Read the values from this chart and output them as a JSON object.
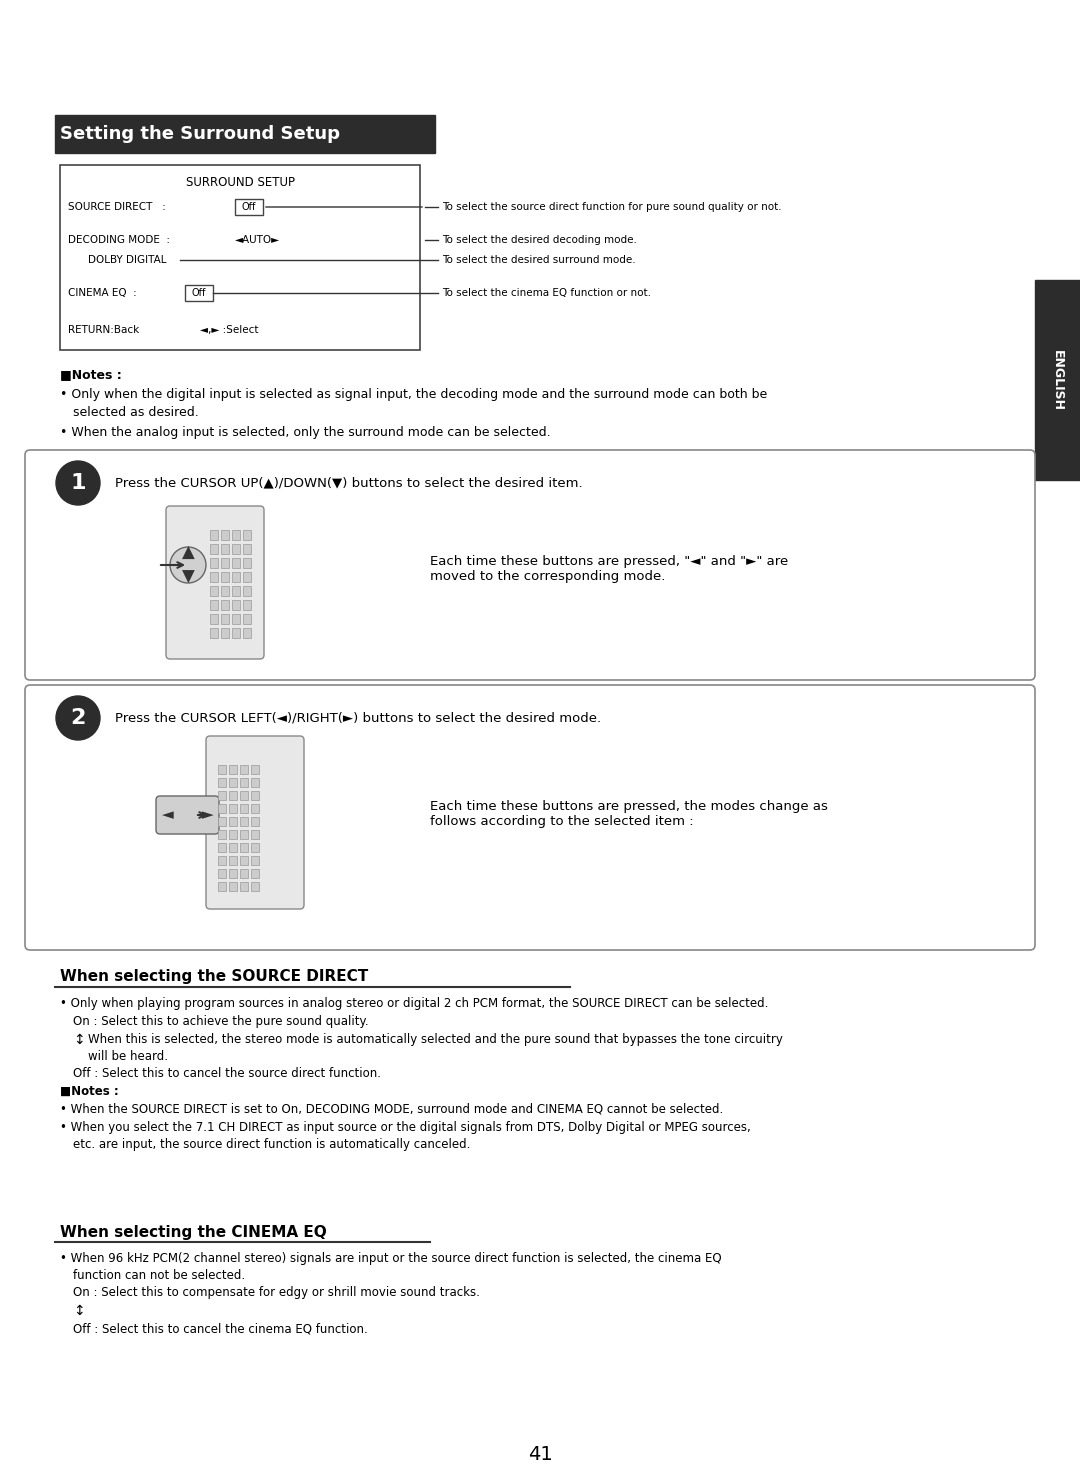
{
  "page_number": "41",
  "bg_color": "#ffffff",
  "title_bar_text": "Setting the Surround Setup",
  "title_bar_bg": "#2c2c2c",
  "title_bar_text_color": "#ffffff",
  "english_tab_text": "ENGLISH",
  "english_tab_bg": "#2c2c2c",
  "english_tab_text_color": "#ffffff",
  "surround_setup_box": {
    "title": "SURROUND SETUP",
    "rows": [
      {
        "label": "SOURCE DIRECT  :",
        "value": "Off",
        "arrow_text": "To select the source direct function for pure sound quality or not."
      },
      {
        "label": "DECODING MODE  : ◄AUTO►",
        "value": "",
        "arrow_text": "To select the desired decoding mode."
      },
      {
        "label": "  DOLBY DIGITAL",
        "value": "",
        "arrow_text": "To select the desired surround mode."
      },
      {
        "label": "CINEMA EQ :",
        "value": "Off",
        "arrow_text": "To select the cinema EQ function or not."
      },
      {
        "label": "RETURN:Back",
        "value": "◄,► :Select",
        "arrow_text": ""
      }
    ]
  },
  "notes_section": {
    "header": "■Notes :",
    "bullets": [
      "Only when the digital input is selected as signal input, the decoding mode and the surround mode can both be\n    selected as desired.",
      "When the analog input is selected, only the surround mode can be selected."
    ]
  },
  "step1": {
    "number": "1",
    "instruction": "Press the CURSOR UP(▲)/DOWN(▼) buttons to select the desired item.",
    "bullet": "Each time these buttons are pressed, \"◄\" and \"►\" are\nmoved to the corresponding mode."
  },
  "step2": {
    "number": "2",
    "instruction": "Press the CURSOR LEFT(◄)/RIGHT(►) buttons to select the desired mode.",
    "bullet": "Each time these buttons are pressed, the modes change as\nfollows according to the selected item :"
  },
  "source_direct_section": {
    "title": "When selecting the SOURCE DIRECT",
    "content": [
      "• Only when playing program sources in analog stereo or digital 2 ch PCM format, the SOURCE DIRECT can be selected.",
      "  On : Select this to achieve the pure sound quality.",
      "  ↕  When this is selected, the stereo mode is automatically selected and the pure sound that bypasses the tone circuitry\n      will be heard.",
      "  Off : Select this to cancel the source direct function.",
      "■Notes :",
      "• When the SOURCE DIRECT is set to On, DECODING MODE, surround mode and CINEMA EQ cannot be selected.",
      "• When you select the 7.1 CH DIRECT as input source or the digital signals from DTS, Dolby Digital or MPEG sources,\n  etc. are input, the source direct function is automatically canceled."
    ]
  },
  "cinema_eq_section": {
    "title": "When selecting the CINEMA EQ",
    "content": [
      "• When 96 kHz PCM(2 channel stereo) signals are input or the source direct function is selected, the cinema EQ\n  function can not be selected.",
      "  On : Select this to compensate for edgy or shrill movie sound tracks.",
      "  ↕",
      "  Off : Select this to cancel the cinema EQ function."
    ]
  }
}
